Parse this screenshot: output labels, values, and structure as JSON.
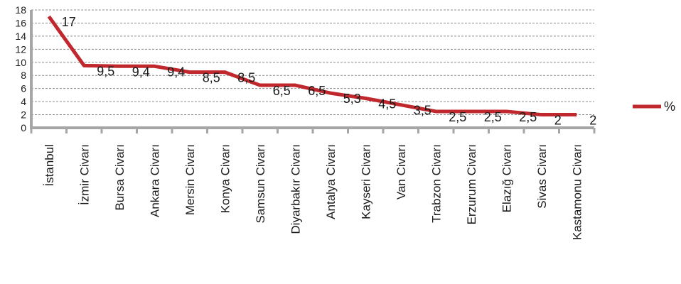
{
  "chart_data": {
    "type": "line",
    "categories": [
      "İstanbul",
      "İzmir Civarı",
      "Bursa Civarı",
      "Ankara Civarı",
      "Mersin Civarı",
      "Konya Civarı",
      "Samsun Civarı",
      "Diyarbakır Civarı",
      "Antalya Civarı",
      "Kayseri Civarı",
      "Van Civarı",
      "Trabzon Civarı",
      "Erzurum Civarı",
      "Elazığ Civarı",
      "Sivas Civarı",
      "Kastamonu Civarı"
    ],
    "series": [
      {
        "name": "%",
        "values": [
          17,
          9.5,
          9.4,
          9.4,
          8.5,
          8.5,
          6.5,
          6.5,
          5.3,
          4.5,
          3.5,
          2.5,
          2.5,
          2.5,
          2,
          2
        ],
        "labels": [
          "17",
          "9,5",
          "9,4",
          "9,4",
          "8,5",
          "8,5",
          "6,5",
          "6,5",
          "5,3",
          "4,5",
          "3,5",
          "2,5",
          "2,5",
          "2,5",
          "2",
          "2"
        ],
        "color": "#c0282d"
      }
    ],
    "title": "",
    "xlabel": "",
    "ylabel": "",
    "ylim": [
      0,
      18
    ],
    "yticks": [
      0,
      2,
      4,
      6,
      8,
      10,
      12,
      14,
      16,
      18
    ],
    "grid": true,
    "grid_style": "dashed",
    "legend": "right"
  }
}
